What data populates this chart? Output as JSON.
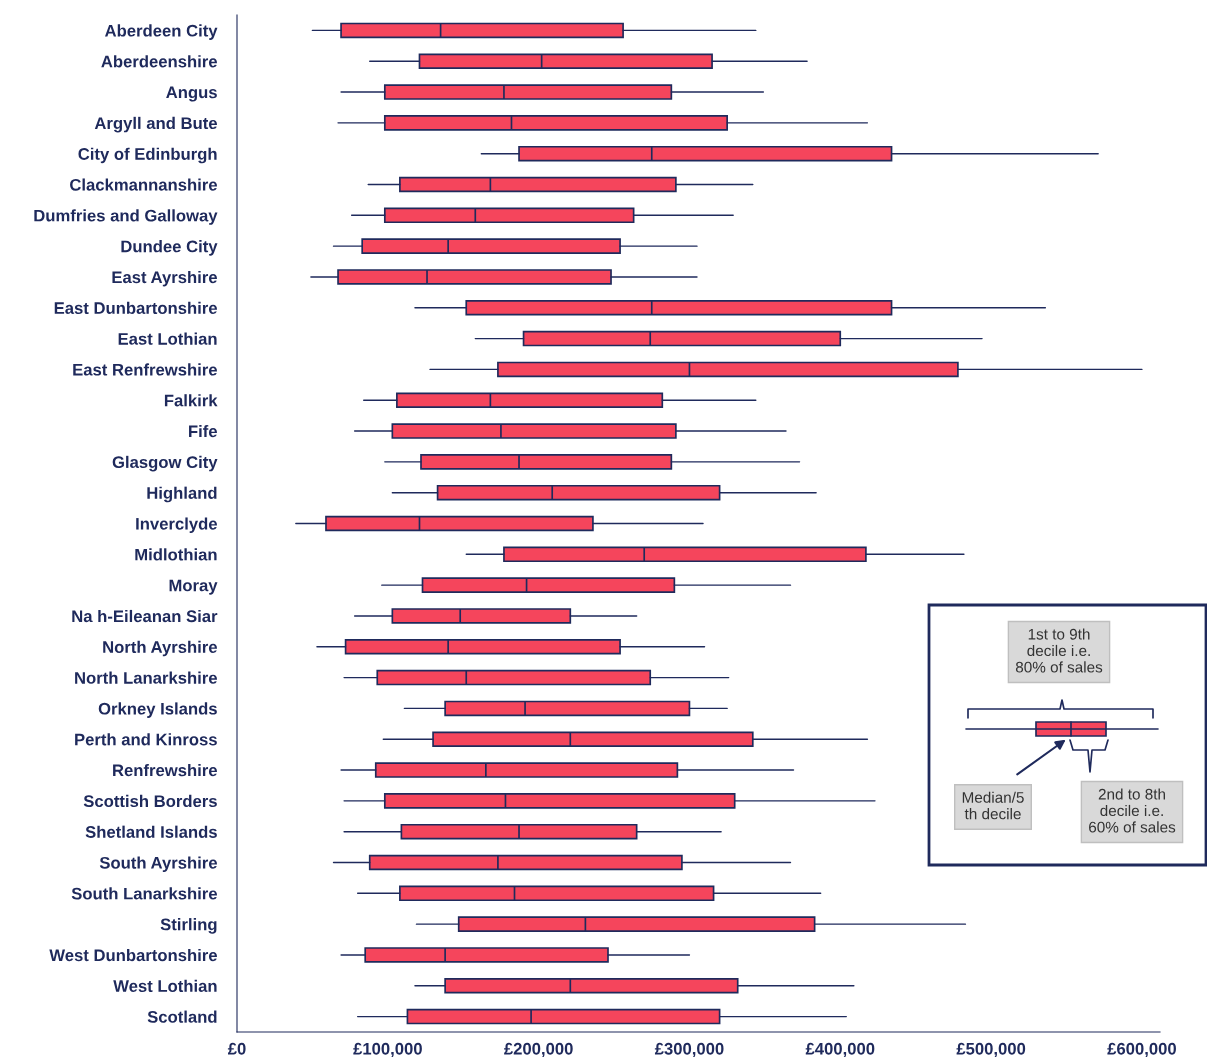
{
  "chart_data": {
    "type": "box",
    "orientation": "horizontal",
    "categories": [
      "Aberdeen City",
      "Aberdeenshire",
      "Angus",
      "Argyll and Bute",
      "City of Edinburgh",
      "Clackmannanshire",
      "Dumfries and Galloway",
      "Dundee City",
      "East Ayrshire",
      "East Dunbartonshire",
      "East Lothian",
      "East Renfrewshire",
      "Falkirk",
      "Fife",
      "Glasgow City",
      "Highland",
      "Inverclyde",
      "Midlothian",
      "Moray",
      "Na h-Eileanan Siar",
      "North Ayrshire",
      "North Lanarkshire",
      "Orkney Islands",
      "Perth and Kinross",
      "Renfrewshire",
      "Scottish Borders",
      "Shetland Islands",
      "South Ayrshire",
      "South Lanarkshire",
      "Stirling",
      "West Dunbartonshire",
      "West Lothian",
      "Scotland"
    ],
    "boxes": [
      {
        "low": 50000,
        "q1": 69000,
        "median": 135000,
        "q3": 256000,
        "high": 344000
      },
      {
        "low": 88000,
        "q1": 121000,
        "median": 202000,
        "q3": 315000,
        "high": 378000
      },
      {
        "low": 69000,
        "q1": 98000,
        "median": 177000,
        "q3": 288000,
        "high": 349000
      },
      {
        "low": 67000,
        "q1": 98000,
        "median": 182000,
        "q3": 325000,
        "high": 418000
      },
      {
        "low": 162000,
        "q1": 187000,
        "median": 275000,
        "q3": 434000,
        "high": 571000
      },
      {
        "low": 87000,
        "q1": 108000,
        "median": 168000,
        "q3": 291000,
        "high": 342000
      },
      {
        "low": 76000,
        "q1": 98000,
        "median": 158000,
        "q3": 263000,
        "high": 329000
      },
      {
        "low": 64000,
        "q1": 83000,
        "median": 140000,
        "q3": 254000,
        "high": 305000
      },
      {
        "low": 49000,
        "q1": 67000,
        "median": 126000,
        "q3": 248000,
        "high": 305000
      },
      {
        "low": 118000,
        "q1": 152000,
        "median": 275000,
        "q3": 434000,
        "high": 536000
      },
      {
        "low": 158000,
        "q1": 190000,
        "median": 274000,
        "q3": 400000,
        "high": 494000
      },
      {
        "low": 128000,
        "q1": 173000,
        "median": 300000,
        "q3": 478000,
        "high": 600000
      },
      {
        "low": 84000,
        "q1": 106000,
        "median": 168000,
        "q3": 282000,
        "high": 344000
      },
      {
        "low": 78000,
        "q1": 103000,
        "median": 175000,
        "q3": 291000,
        "high": 364000
      },
      {
        "low": 98000,
        "q1": 122000,
        "median": 187000,
        "q3": 288000,
        "high": 373000
      },
      {
        "low": 103000,
        "q1": 133000,
        "median": 209000,
        "q3": 320000,
        "high": 384000
      },
      {
        "low": 39000,
        "q1": 59000,
        "median": 121000,
        "q3": 236000,
        "high": 309000
      },
      {
        "low": 152000,
        "q1": 177000,
        "median": 270000,
        "q3": 417000,
        "high": 482000
      },
      {
        "low": 96000,
        "q1": 123000,
        "median": 192000,
        "q3": 290000,
        "high": 367000
      },
      {
        "low": 78000,
        "q1": 103000,
        "median": 148000,
        "q3": 221000,
        "high": 265000
      },
      {
        "low": 53000,
        "q1": 72000,
        "median": 140000,
        "q3": 254000,
        "high": 310000
      },
      {
        "low": 71000,
        "q1": 93000,
        "median": 152000,
        "q3": 274000,
        "high": 326000
      },
      {
        "low": 111000,
        "q1": 138000,
        "median": 191000,
        "q3": 300000,
        "high": 325000
      },
      {
        "low": 97000,
        "q1": 130000,
        "median": 221000,
        "q3": 342000,
        "high": 418000
      },
      {
        "low": 69000,
        "q1": 92000,
        "median": 165000,
        "q3": 292000,
        "high": 369000
      },
      {
        "low": 71000,
        "q1": 98000,
        "median": 178000,
        "q3": 330000,
        "high": 423000
      },
      {
        "low": 71000,
        "q1": 109000,
        "median": 187000,
        "q3": 265000,
        "high": 321000
      },
      {
        "low": 64000,
        "q1": 88000,
        "median": 173000,
        "q3": 295000,
        "high": 367000
      },
      {
        "low": 80000,
        "q1": 108000,
        "median": 184000,
        "q3": 316000,
        "high": 387000
      },
      {
        "low": 119000,
        "q1": 147000,
        "median": 231000,
        "q3": 383000,
        "high": 483000
      },
      {
        "low": 69000,
        "q1": 85000,
        "median": 138000,
        "q3": 246000,
        "high": 300000
      },
      {
        "low": 118000,
        "q1": 138000,
        "median": 221000,
        "q3": 332000,
        "high": 409000
      },
      {
        "low": 80000,
        "q1": 113000,
        "median": 195000,
        "q3": 320000,
        "high": 404000
      }
    ],
    "color": "#f5455c",
    "xlim": [
      0,
      612000
    ],
    "xticks": [
      {
        "value": 0,
        "label": "£0"
      },
      {
        "value": 100000,
        "label": "£100,000"
      },
      {
        "value": 200000,
        "label": "£200,000"
      },
      {
        "value": 300000,
        "label": "£300,000"
      },
      {
        "value": 400000,
        "label": "£400,000"
      },
      {
        "value": 500000,
        "label": "£500,000"
      },
      {
        "value": 600000,
        "label": "£600,000"
      }
    ],
    "grid": false,
    "annotations": [
      "1st to 9th\ndecile i.e.\n80% of sales",
      "Median/5\nth decile",
      "2nd to 8th\ndecile i.e.\n60% of sales"
    ]
  }
}
